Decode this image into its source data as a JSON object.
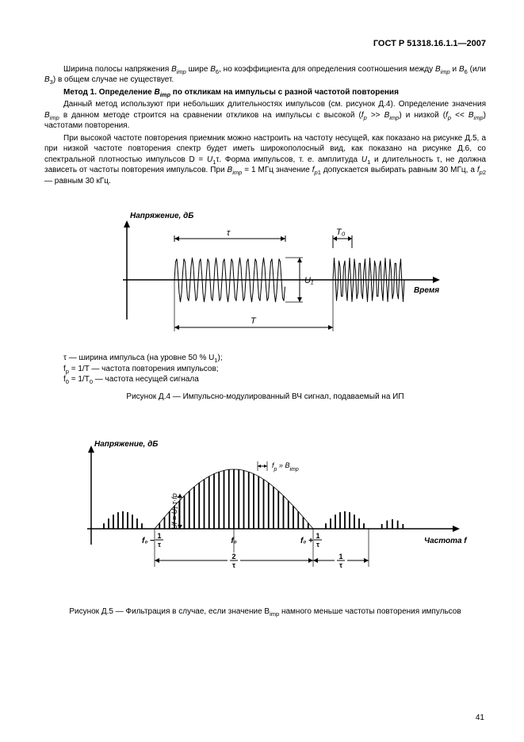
{
  "header": "ГОСТ Р 51318.16.1.1—2007",
  "para1": "Ширина полосы напряжения B_imp шире B_6, но коэффициента для определения соотношения между B_imp и B_6 (или B_3) в общем случае не существует.",
  "method_title": "Метод  1. Определение B_imp по откликам на импульсы с разной частотой повторения",
  "para2": "Данный метод используют при небольших длительностях импульсов (см. рисунок Д.4). Определение значения B_imp в данном методе строится на сравнении откликов на импульсы с высокой (f_p >> B_imp) и низкой (f_p << B_imp) частотами повторения.",
  "para3": "При высокой частоте повторения приемник можно настроить на частоту несущей, как показано на рисунке Д.5, а при низкой частоте повторения спектр будет иметь широкополосный вид, как показано на рисунке Д.6, со спектральной плотностью импульсов D = U_1τ. Форма импульсов, т. е. амплитуда U_1 и длительность τ, не должна зависеть от частоты повторения импульсов. При B_imp = 1 МГц значение f_p1 допускается выбирать равным 30 МГц, а f_p2 — равным 30 кГц.",
  "fig4": {
    "y_label": "Напряжение, дБ",
    "x_label": "Время",
    "tau": "τ",
    "U1": "U₁",
    "T": "T",
    "T0": "T₀",
    "axis_color": "#000",
    "wave_color": "#000",
    "carrier_freq": 14,
    "amp": 28,
    "burst1": {
      "start": 90,
      "width": 150
    },
    "burst2": {
      "start": 290,
      "width": 80
    }
  },
  "legend": {
    "l1": "τ — ширина импульса (на уровне 50 % U_1);",
    "l2": "f_p = 1/T — частота повторения импульсов;",
    "l3": "f_0 = 1/T_0 — частота несущей сигнала"
  },
  "cap4": "Рисунок Д.4 — Импульсно-модулированный ВЧ сигнал, подаваемый на ИП",
  "fig5": {
    "y_label": "Напряжение, дБ",
    "x_label": "Частота f",
    "tick_left": "f₀ − 1/τ",
    "tick_mid": "f₀",
    "tick_right": "f₀ + 1/τ",
    "span_lower": "2/τ",
    "span_far": "1/τ",
    "fp_label": "f_p >> B_imp",
    "U1fp": "U_f = U_1·τ·f_p",
    "bar_color": "#000",
    "axis_color": "#000",
    "lobes": {
      "main": {
        "start": 120,
        "end": 320,
        "bars": 33,
        "max_h": 75
      },
      "side_l": {
        "start": 50,
        "end": 110,
        "bars": 11,
        "max_h": 22
      },
      "side_r": {
        "start": 330,
        "end": 390,
        "bars": 11,
        "max_h": 22
      },
      "side_r2": {
        "start": 400,
        "end": 440,
        "bars": 7,
        "max_h": 12
      }
    }
  },
  "cap5": "Рисунок Д.5 — Фильтрация в случае, если значение B_imp намного меньше частоты повторения импульсов",
  "pagenum": "41"
}
